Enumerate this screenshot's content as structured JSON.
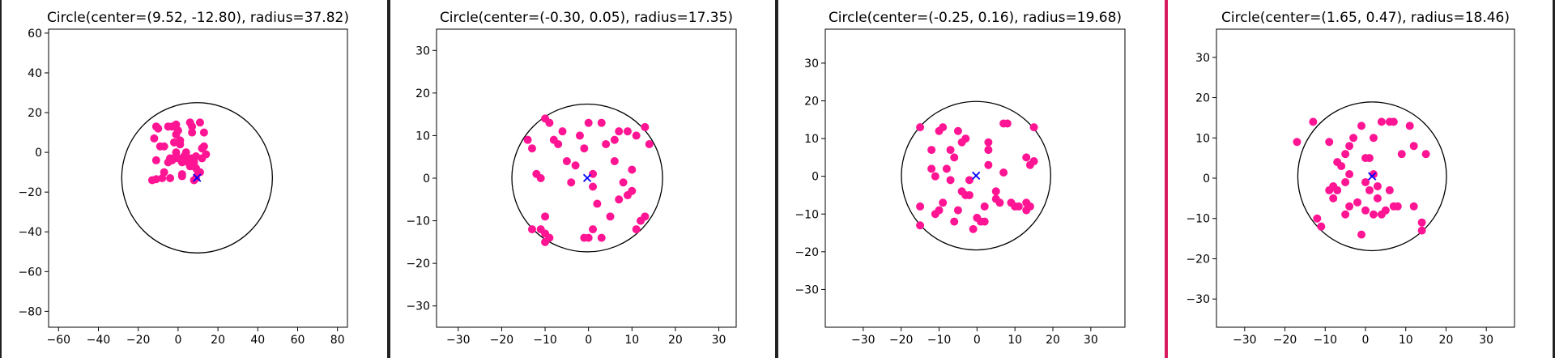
{
  "colors": {
    "point": "#ff1493",
    "center_marker": "#0000ff",
    "circle": "#000000",
    "axes": "#000000",
    "separators": [
      "#222222",
      "#222222",
      "#222222",
      "#d81b60",
      "#222222"
    ]
  },
  "chart_data": [
    {
      "type": "scatter",
      "title": "Circle(center=(9.52, -12.80), radius=37.82)",
      "xlim": [
        -65,
        85
      ],
      "ylim": [
        -88,
        62
      ],
      "xticks": [
        -60,
        -40,
        -20,
        0,
        20,
        40,
        60,
        80
      ],
      "yticks": [
        -80,
        -60,
        -40,
        -20,
        0,
        20,
        40,
        60
      ],
      "center": [
        9.52,
        -12.8
      ],
      "radius": 37.82,
      "points": [
        [
          -13,
          -14
        ],
        [
          -11,
          -13.5
        ],
        [
          -8,
          -13
        ],
        [
          -11,
          -4
        ],
        [
          -12,
          7
        ],
        [
          -10,
          12
        ],
        [
          -11,
          13
        ],
        [
          -9,
          3
        ],
        [
          -7,
          3
        ],
        [
          -7,
          -10
        ],
        [
          -4,
          -13
        ],
        [
          -5,
          -5
        ],
        [
          -4,
          -3
        ],
        [
          -3,
          -4
        ],
        [
          -2,
          -3
        ],
        [
          -2,
          5
        ],
        [
          -1,
          9
        ],
        [
          0,
          11
        ],
        [
          1,
          6
        ],
        [
          1,
          4
        ],
        [
          0,
          -3
        ],
        [
          -1,
          0
        ],
        [
          2,
          -5
        ],
        [
          2,
          -12
        ],
        [
          2,
          -11
        ],
        [
          4,
          0
        ],
        [
          5,
          -3
        ],
        [
          6,
          -7
        ],
        [
          5,
          -5
        ],
        [
          7,
          -3
        ],
        [
          8,
          -5
        ],
        [
          9,
          -8
        ],
        [
          6,
          15
        ],
        [
          7,
          13
        ],
        [
          7,
          10
        ],
        [
          9,
          -2
        ],
        [
          10,
          -10
        ],
        [
          9,
          -13
        ],
        [
          8,
          -14
        ],
        [
          11,
          15
        ],
        [
          11,
          -10
        ],
        [
          12,
          -3
        ],
        [
          12,
          2
        ],
        [
          13,
          3
        ],
        [
          14,
          -1
        ],
        [
          13,
          10
        ],
        [
          -5,
          13
        ],
        [
          -3,
          13
        ],
        [
          -1,
          14
        ],
        [
          3,
          -2
        ]
      ]
    },
    {
      "type": "scatter",
      "title": "Circle(center=(-0.30, 0.05), radius=17.35)",
      "xlim": [
        -35,
        34
      ],
      "ylim": [
        -35,
        35
      ],
      "xticks": [
        -30,
        -20,
        -10,
        0,
        10,
        20,
        30
      ],
      "yticks": [
        -30,
        -20,
        -10,
        0,
        10,
        20,
        30
      ],
      "center": [
        -0.3,
        0.05
      ],
      "radius": 17.35,
      "points": [
        [
          -14,
          9
        ],
        [
          -13,
          7
        ],
        [
          -12,
          1
        ],
        [
          -11,
          0
        ],
        [
          -10,
          14
        ],
        [
          -9,
          13
        ],
        [
          -8,
          9
        ],
        [
          -7,
          8
        ],
        [
          -5,
          4
        ],
        [
          -4,
          -1
        ],
        [
          -3,
          3
        ],
        [
          -1,
          7
        ],
        [
          0,
          13
        ],
        [
          3,
          13
        ],
        [
          4,
          8
        ],
        [
          6,
          4
        ],
        [
          7,
          11
        ],
        [
          9,
          11
        ],
        [
          11,
          10
        ],
        [
          13,
          12
        ],
        [
          14,
          8
        ],
        [
          10,
          2
        ],
        [
          8,
          -1
        ],
        [
          9,
          -4
        ],
        [
          7,
          -5
        ],
        [
          5,
          -9
        ],
        [
          2,
          -6
        ],
        [
          1,
          -2
        ],
        [
          0,
          -14
        ],
        [
          -1,
          -14
        ],
        [
          3,
          -14
        ],
        [
          -10,
          -9
        ],
        [
          -11,
          -12
        ],
        [
          -10,
          -13
        ],
        [
          -9,
          -14
        ],
        [
          -10,
          -15
        ],
        [
          -13,
          -12
        ],
        [
          12,
          -10
        ],
        [
          13,
          -9
        ],
        [
          11,
          -12
        ],
        [
          1,
          1
        ],
        [
          -2,
          10
        ],
        [
          10,
          -3
        ],
        [
          6,
          9
        ],
        [
          -6,
          11
        ],
        [
          1,
          -12
        ]
      ]
    },
    {
      "type": "scatter",
      "title": "Circle(center=(-0.25, 0.16), radius=19.68)",
      "xlim": [
        -40,
        39
      ],
      "ylim": [
        -40,
        39
      ],
      "xticks": [
        -30,
        -20,
        -10,
        0,
        10,
        20,
        30
      ],
      "yticks": [
        -30,
        -20,
        -10,
        0,
        10,
        20,
        30
      ],
      "center": [
        -0.25,
        0.16
      ],
      "radius": 19.68,
      "points": [
        [
          -15,
          13
        ],
        [
          -12,
          7
        ],
        [
          -12,
          2
        ],
        [
          -11,
          0
        ],
        [
          -10,
          12
        ],
        [
          -9,
          13
        ],
        [
          -8,
          2
        ],
        [
          -7,
          7
        ],
        [
          -6,
          5
        ],
        [
          -5,
          12
        ],
        [
          -4,
          9
        ],
        [
          -3,
          10
        ],
        [
          -2,
          -1
        ],
        [
          -3,
          -5
        ],
        [
          -4,
          -4
        ],
        [
          -5,
          -9
        ],
        [
          -6,
          -12
        ],
        [
          -7,
          -1
        ],
        [
          -9,
          -7
        ],
        [
          -10,
          -9
        ],
        [
          -11,
          -10
        ],
        [
          -15,
          -8
        ],
        [
          -15,
          -13
        ],
        [
          -1,
          -14
        ],
        [
          0,
          -11
        ],
        [
          1,
          -12
        ],
        [
          2,
          -8
        ],
        [
          3,
          3
        ],
        [
          3,
          7
        ],
        [
          3,
          9
        ],
        [
          5,
          -6
        ],
        [
          6,
          -7
        ],
        [
          7,
          14
        ],
        [
          8,
          14
        ],
        [
          7,
          1
        ],
        [
          9,
          -7
        ],
        [
          10,
          -8
        ],
        [
          11,
          -8
        ],
        [
          13,
          -7
        ],
        [
          13,
          -9
        ],
        [
          13,
          5
        ],
        [
          14,
          3
        ],
        [
          14,
          -8
        ],
        [
          15,
          13
        ],
        [
          15,
          4
        ],
        [
          2,
          -12
        ],
        [
          -2,
          -5
        ],
        [
          5,
          -4
        ]
      ]
    },
    {
      "type": "scatter",
      "title": "Circle(center=(1.65, 0.47), radius=18.46)",
      "xlim": [
        -37,
        37
      ],
      "ylim": [
        -37,
        37
      ],
      "xticks": [
        -30,
        -20,
        -10,
        0,
        10,
        20,
        30
      ],
      "yticks": [
        -30,
        -20,
        -10,
        0,
        10,
        20,
        30
      ],
      "center": [
        1.65,
        0.47
      ],
      "radius": 18.46,
      "points": [
        [
          -17,
          9
        ],
        [
          -13,
          14
        ],
        [
          -12,
          -10
        ],
        [
          -11,
          -12
        ],
        [
          -9,
          9
        ],
        [
          -9,
          -3
        ],
        [
          -8,
          -2
        ],
        [
          -8,
          -5
        ],
        [
          -7,
          4
        ],
        [
          -7,
          -3
        ],
        [
          -6,
          3
        ],
        [
          -5,
          6
        ],
        [
          -5,
          -9
        ],
        [
          -4,
          1
        ],
        [
          -4,
          8
        ],
        [
          -3,
          10
        ],
        [
          -2,
          -6
        ],
        [
          -1,
          13
        ],
        [
          -1,
          -14
        ],
        [
          0,
          5
        ],
        [
          0,
          -8
        ],
        [
          1,
          -3
        ],
        [
          1,
          5
        ],
        [
          2,
          1
        ],
        [
          2,
          -9
        ],
        [
          2,
          10
        ],
        [
          3,
          -2
        ],
        [
          4,
          -9
        ],
        [
          4,
          14
        ],
        [
          5,
          -8
        ],
        [
          6,
          14
        ],
        [
          7,
          14
        ],
        [
          7,
          -7
        ],
        [
          8,
          -7
        ],
        [
          9,
          6
        ],
        [
          11,
          13
        ],
        [
          12,
          8
        ],
        [
          12,
          -7
        ],
        [
          14,
          -11
        ],
        [
          14,
          -13
        ],
        [
          15,
          6
        ],
        [
          -4,
          -7
        ],
        [
          -5,
          -1
        ],
        [
          3,
          -5
        ],
        [
          6,
          -3
        ],
        [
          0,
          -1
        ]
      ]
    }
  ]
}
